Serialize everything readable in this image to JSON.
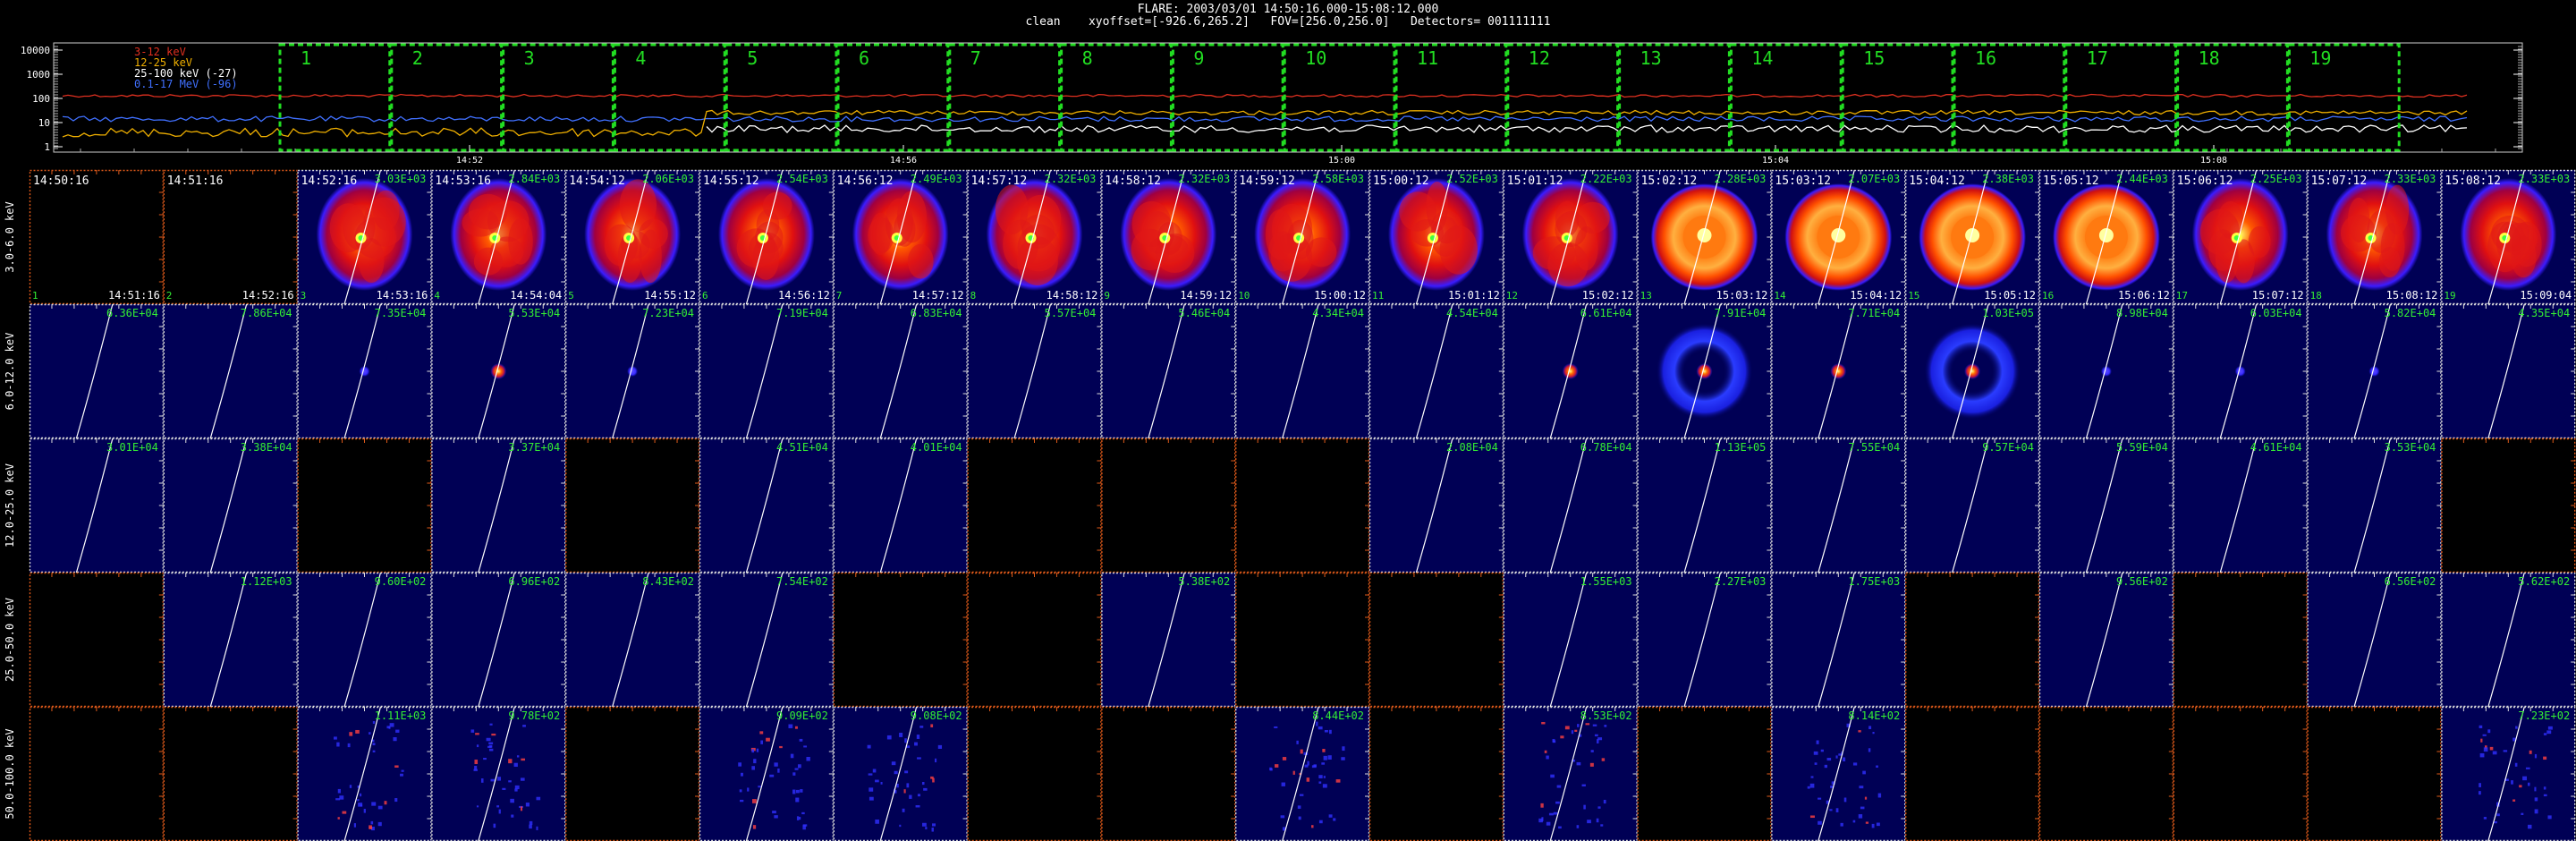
{
  "header": {
    "line1": "FLARE: 2003/03/01 14:50:16.000-15:08:12.000",
    "line2": "clean    xyoffset=[-926.6,265.2]   FOV=[256.0,256.0]   Detectors= 001111111"
  },
  "lightcurve": {
    "legend": [
      {
        "label": "3-12 keV",
        "color": "#e03020"
      },
      {
        "label": "12-25 keV",
        "color": "#f0b000"
      },
      {
        "label": "25-100 keV (-27)",
        "color": "#ffffff"
      },
      {
        "label": "0.1-17 MeV (-96)",
        "color": "#4070ff"
      }
    ],
    "y_ticks": [
      "10000",
      "1000",
      "100",
      "10",
      "1"
    ],
    "x_ticks": [
      "14:52",
      "14:56",
      "15:00",
      "15:04",
      "15:08"
    ],
    "interval_numbers": [
      "1",
      "2",
      "3",
      "4",
      "5",
      "6",
      "7",
      "8",
      "9",
      "10",
      "11",
      "12",
      "13",
      "14",
      "15",
      "16",
      "17",
      "18",
      "19"
    ],
    "interval_color": "#22dd22"
  },
  "energy_bands": [
    "3.0-6.0 keV",
    "6.0-12.0 keV",
    "12.0-25.0 keV",
    "25.0-50.0 keV",
    "50.0-100.0 keV"
  ],
  "start_times": [
    "14:50:16",
    "14:51:16",
    "14:52:16",
    "14:53:16",
    "14:54:12",
    "14:55:12",
    "14:56:12",
    "14:57:12",
    "14:58:12",
    "14:59:12",
    "15:00:12",
    "15:01:12",
    "15:02:12",
    "15:03:12",
    "15:04:12",
    "15:05:12",
    "15:06:12",
    "15:07:12",
    "15:08:12"
  ],
  "end_times": [
    "14:51:16",
    "14:52:16",
    "14:53:16",
    "14:54:04",
    "14:55:12",
    "14:56:12",
    "14:57:12",
    "14:58:12",
    "14:59:12",
    "15:00:12",
    "15:01:12",
    "15:02:12",
    "15:03:12",
    "15:04:12",
    "15:05:12",
    "15:06:12",
    "15:07:12",
    "15:08:12",
    "15:09:04"
  ],
  "index_labels": [
    "1",
    "2",
    "3",
    "4",
    "5",
    "6",
    "7",
    "8",
    "9",
    "10",
    "11",
    "12",
    "13",
    "14",
    "15",
    "16",
    "17",
    "18",
    "19"
  ],
  "maxima": [
    [
      "",
      "",
      "3.03E+03",
      "2.84E+03",
      "2.06E+03",
      "2.54E+03",
      "2.49E+03",
      "2.32E+03",
      "2.32E+03",
      "2.58E+03",
      "2.52E+03",
      "2.22E+03",
      "2.28E+03",
      "2.07E+03",
      "2.38E+03",
      "2.44E+03",
      "2.25E+03",
      "2.33E+03",
      "2.33E+03"
    ],
    [
      "6.36E+04",
      "7.86E+04",
      "7.35E+04",
      "5.53E+04",
      "7.23E+04",
      "7.19E+04",
      "6.83E+04",
      "5.57E+04",
      "5.46E+04",
      "4.34E+04",
      "4.54E+04",
      "6.61E+04",
      "7.91E+04",
      "7.71E+04",
      "1.03E+05",
      "8.98E+04",
      "6.03E+04",
      "5.82E+04",
      "4.35E+04"
    ],
    [
      "3.01E+04",
      "3.38E+04",
      "",
      "3.37E+04",
      "",
      "4.51E+04",
      "4.01E+04",
      "",
      "",
      "",
      "2.08E+04",
      "6.78E+04",
      "1.13E+05",
      "7.55E+04",
      "9.57E+04",
      "5.59E+04",
      "4.61E+04",
      "3.53E+04",
      ""
    ],
    [
      "",
      "1.12E+03",
      "9.60E+02",
      "6.96E+02",
      "8.43E+02",
      "7.54E+02",
      "",
      "",
      "5.38E+02",
      "",
      "",
      "1.55E+03",
      "2.27E+03",
      "1.75E+03",
      "",
      "9.56E+02",
      "",
      "6.56E+02",
      "5.62E+02"
    ],
    [
      "",
      "",
      "1.11E+03",
      "9.78E+02",
      "",
      "9.09E+02",
      "9.08E+02",
      "",
      "",
      "8.44E+02",
      "",
      "8.53E+02",
      "",
      "8.14E+02",
      "",
      "",
      "",
      "",
      "7.23E+02"
    ]
  ],
  "panel_types": [
    [
      "empty",
      "empty",
      "flare",
      "flare",
      "flare",
      "flare",
      "flare",
      "flare",
      "flare",
      "flare",
      "flare",
      "flare",
      "ring",
      "ring",
      "ring",
      "ring",
      "flare",
      "flare",
      "flare"
    ],
    [
      "blank",
      "blank",
      "dot",
      "dot",
      "dot",
      "blank",
      "blank",
      "blank",
      "blank",
      "blank",
      "blank",
      "dot",
      "ring",
      "dot",
      "ring",
      "dot",
      "dot",
      "dot",
      "blank"
    ],
    [
      "blank",
      "blank",
      "empty",
      "blank",
      "empty",
      "blank",
      "blank",
      "empty",
      "empty",
      "empty",
      "blank",
      "blank",
      "blank",
      "blank",
      "blank",
      "blank",
      "blank",
      "blank",
      "empty"
    ],
    [
      "empty",
      "blank",
      "blank",
      "blank",
      "blank",
      "blank",
      "empty",
      "empty",
      "blank",
      "empty",
      "empty",
      "blank",
      "blank",
      "blank",
      "empty",
      "blank",
      "empty",
      "blank",
      "blank"
    ],
    [
      "empty",
      "empty",
      "noise",
      "noise",
      "empty",
      "noise",
      "noise",
      "empty",
      "empty",
      "noise",
      "empty",
      "noise",
      "empty",
      "noise",
      "empty",
      "empty",
      "empty",
      "empty",
      "noise"
    ]
  ],
  "colors": {
    "panel_bg": "#000055",
    "white_frame": "#dddddd",
    "orange_frame": "#e05a1a",
    "label_green": "#33ee33",
    "interval_green": "#22dd22"
  }
}
